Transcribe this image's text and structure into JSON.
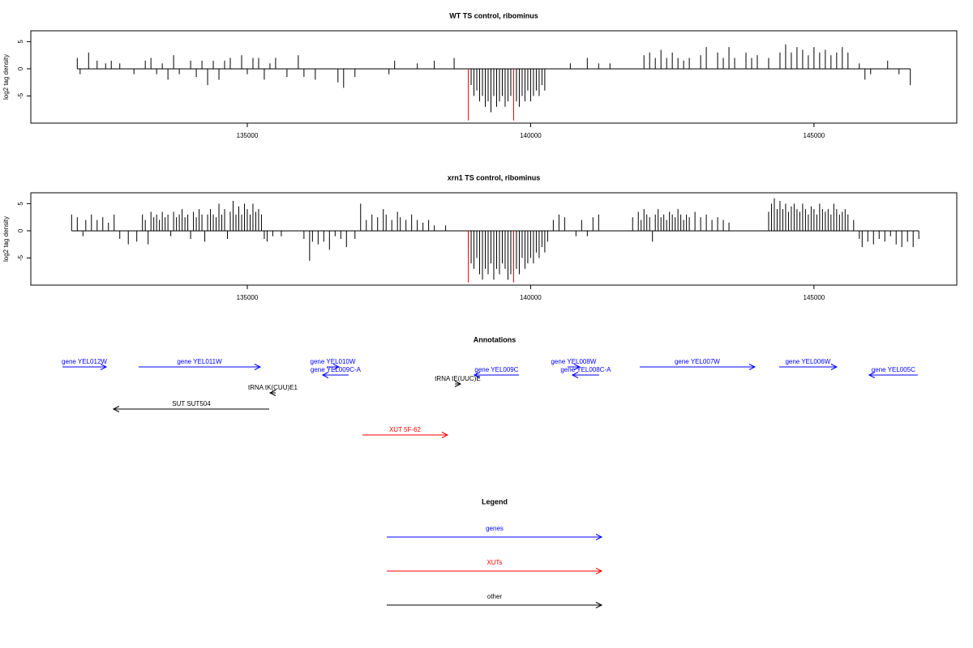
{
  "chart_data": [
    {
      "type": "bar",
      "title": "WT TS control, ribominus",
      "ylabel": "log2 tag density",
      "xlim": [
        131180,
        147520
      ],
      "ylim": [
        -10,
        7
      ],
      "xticks": [
        135000,
        140000,
        145000
      ],
      "yticks": [
        -5,
        0,
        5
      ],
      "series": [
        {
          "color": "#000000",
          "x": [
            132000,
            132050,
            132200,
            132350,
            132500,
            132600,
            132750,
            133000,
            133200,
            133300,
            133400,
            133500,
            133600,
            133700,
            133800,
            134000,
            134100,
            134200,
            134300,
            134400,
            134500,
            134600,
            134700,
            134900,
            135000,
            135100,
            135200,
            135300,
            135400,
            135500,
            135700,
            135900,
            136000,
            136200,
            136600,
            136700,
            136900,
            137500,
            137600,
            138000,
            138300,
            138650,
            138950,
            139000,
            139050,
            139100,
            139150,
            139200,
            139250,
            139300,
            139350,
            139400,
            139450,
            139500,
            139550,
            139600,
            139650,
            139750,
            139800,
            139850,
            139900,
            139950,
            140000,
            140050,
            140100,
            140150,
            140200,
            140250,
            140700,
            141000,
            141200,
            141400,
            142000,
            142100,
            142200,
            142300,
            142400,
            142500,
            142600,
            142700,
            142800,
            143000,
            143100,
            143300,
            143400,
            143500,
            143600,
            143800,
            143900,
            144000,
            144200,
            144400,
            144500,
            144600,
            144700,
            144800,
            144900,
            145000,
            145100,
            145200,
            145300,
            145400,
            145500,
            145600,
            145800,
            145900,
            146000,
            146300,
            146500,
            146700
          ],
          "values": [
            2,
            -1,
            3,
            1.5,
            1,
            1.5,
            1,
            -1,
            1.5,
            2,
            -1,
            1,
            -2,
            2.5,
            -1,
            1.5,
            -1.5,
            1.5,
            -3,
            1.5,
            -2,
            1.5,
            2,
            2.5,
            -1,
            2,
            2,
            -2,
            1,
            2,
            -1.5,
            2.5,
            -1.5,
            -2,
            -2.5,
            -3.5,
            -1.5,
            -1,
            1.5,
            1,
            1.5,
            2,
            -3,
            -5,
            -4,
            -6,
            -5,
            -7,
            -6,
            -8,
            -5,
            -7,
            -6,
            -5,
            -7,
            -6,
            -5,
            -6,
            -7,
            -5,
            -6,
            -4,
            -6,
            -5,
            -4,
            -5,
            -3,
            -4,
            1,
            2,
            1,
            1,
            2.5,
            3,
            2,
            3.5,
            2,
            3,
            2,
            1.5,
            2,
            2.5,
            4,
            3,
            2,
            4,
            2,
            3,
            2,
            2.5,
            2,
            3,
            4.5,
            3,
            4,
            3.5,
            2.5,
            4,
            3,
            3.5,
            2.5,
            3,
            4,
            3,
            1,
            -2,
            -1,
            1.5,
            -1,
            -3
          ]
        },
        {
          "color": "#ff0000",
          "x": [
            138900,
            139700
          ],
          "values": [
            -9.5,
            -9.5
          ]
        }
      ]
    },
    {
      "type": "bar",
      "title": "xrn1 TS control, ribominus",
      "ylabel": "log2 tag density",
      "xlim": [
        131180,
        147520
      ],
      "ylim": [
        -10,
        7
      ],
      "xticks": [
        135000,
        140000,
        145000
      ],
      "yticks": [
        -5,
        0,
        5
      ],
      "series": [
        {
          "color": "#000000",
          "x": [
            131900,
            132000,
            132100,
            132150,
            132250,
            132350,
            132450,
            132550,
            132650,
            132750,
            132900,
            133050,
            133150,
            133200,
            133250,
            133300,
            133350,
            133400,
            133450,
            133500,
            133550,
            133600,
            133650,
            133700,
            133750,
            133800,
            133850,
            133900,
            133950,
            134000,
            134050,
            134100,
            134150,
            134200,
            134250,
            134300,
            134350,
            134400,
            134450,
            134500,
            134550,
            134600,
            134650,
            134700,
            134750,
            134800,
            134850,
            134900,
            134950,
            135000,
            135050,
            135100,
            135150,
            135200,
            135250,
            135300,
            135350,
            135450,
            135600,
            136000,
            136100,
            136150,
            136250,
            136350,
            136450,
            136550,
            136650,
            136750,
            136900,
            137000,
            137100,
            137200,
            137300,
            137400,
            137450,
            137550,
            137650,
            137700,
            137800,
            137900,
            138000,
            138100,
            138200,
            138300,
            138500,
            138900,
            138950,
            139000,
            139050,
            139100,
            139150,
            139200,
            139250,
            139300,
            139350,
            139400,
            139450,
            139500,
            139550,
            139600,
            139650,
            139700,
            139750,
            139800,
            139850,
            139900,
            139950,
            140000,
            140050,
            140100,
            140150,
            140200,
            140250,
            140300,
            140400,
            140500,
            140600,
            140800,
            140900,
            141000,
            141100,
            141200,
            141800,
            141900,
            141950,
            142000,
            142050,
            142100,
            142150,
            142200,
            142250,
            142300,
            142350,
            142400,
            142450,
            142500,
            142550,
            142600,
            142650,
            142700,
            142750,
            142800,
            142900,
            143000,
            143100,
            143200,
            143300,
            143400,
            143500,
            144200,
            144250,
            144300,
            144350,
            144400,
            144450,
            144500,
            144550,
            144600,
            144650,
            144700,
            144750,
            144800,
            144850,
            144900,
            144950,
            145000,
            145050,
            145100,
            145150,
            145200,
            145250,
            145300,
            145350,
            145400,
            145450,
            145500,
            145550,
            145600,
            145700,
            145800,
            145850,
            145950,
            146050,
            146150,
            146250,
            146350,
            146450,
            146550,
            146650,
            146750,
            146850
          ],
          "values": [
            3,
            2.5,
            -1,
            2,
            3,
            2,
            2.5,
            1.5,
            3,
            -1.5,
            -2.5,
            -2,
            3,
            2,
            -2.5,
            3.5,
            2.5,
            3,
            2,
            3.5,
            2.5,
            3,
            -1,
            3.5,
            2.5,
            3,
            4,
            2.5,
            3,
            -1.5,
            3.5,
            2.5,
            4,
            3,
            -2,
            3,
            4,
            3,
            2.5,
            5,
            3,
            4,
            -1.5,
            3.5,
            5.5,
            3,
            4.5,
            3,
            5,
            4,
            3,
            5,
            3.5,
            4,
            3,
            -1.5,
            -2,
            -1,
            -1,
            -1.5,
            -5.5,
            -2,
            -2.5,
            -2,
            -3.5,
            -1,
            -1.5,
            -3,
            -1.5,
            5,
            2,
            3,
            2.5,
            4,
            3,
            2,
            3.5,
            2.5,
            2,
            3,
            2,
            1.5,
            2,
            1,
            1,
            -3,
            -6,
            -7,
            -5,
            -8,
            -9,
            -7,
            -8,
            -6,
            -9,
            -7,
            -8,
            -6,
            -7,
            -9,
            -8,
            -6,
            -7,
            -8,
            -5,
            -7,
            -6,
            -5,
            -6,
            -4,
            -5,
            -3,
            -4,
            -2,
            2,
            3,
            2.5,
            -1,
            2,
            -1,
            2.5,
            3,
            2.5,
            3.5,
            2,
            4,
            3,
            2.5,
            -2,
            3,
            4,
            2.5,
            3,
            2,
            3.5,
            3,
            2.5,
            4,
            3,
            2,
            3,
            2.5,
            3.5,
            2.5,
            3,
            2,
            2.5,
            2,
            1.5,
            3.5,
            5,
            6,
            4,
            5.5,
            4,
            5,
            3.5,
            4.5,
            5,
            4,
            3.5,
            5,
            4,
            3,
            4.5,
            4,
            3,
            5,
            4,
            3.5,
            4,
            3,
            5,
            4,
            3,
            3.5,
            4,
            3,
            2,
            -1.5,
            -3,
            -2,
            -2.5,
            -1.5,
            -2,
            -1,
            -2.5,
            -3,
            -2,
            -3,
            -1.5
          ]
        },
        {
          "color": "#ff0000",
          "x": [
            138900,
            139700
          ],
          "values": [
            -9.5,
            -9.5
          ]
        }
      ]
    }
  ],
  "annotations": {
    "title": "Annotations",
    "features": [
      {
        "label": "gene YEL012W",
        "start": 131738,
        "end": 132511,
        "strand": "+",
        "color": "#0000ff"
      },
      {
        "label": "gene YEL011W",
        "start": 133083,
        "end": 135229,
        "strand": "+",
        "color": "#0000ff"
      },
      {
        "label": "gene YEL010W",
        "start": 136402,
        "end": 136617,
        "strand": "+",
        "color": "#0000ff"
      },
      {
        "label": "gene YEL009C-A",
        "start": 136330,
        "end": 136788,
        "strand": "-",
        "color": "#0000ff"
      },
      {
        "label": "tRNA tK(CUU)E1",
        "start": 135401,
        "end": 135501,
        "strand": "-",
        "color": "#000000"
      },
      {
        "label": "SUT SUT504",
        "start": 132639,
        "end": 135386,
        "strand": "-",
        "color": "#000000"
      },
      {
        "label": "tRNA tE(UUC)E",
        "start": 138662,
        "end": 138763,
        "strand": "+",
        "color": "#000000"
      },
      {
        "label": "gene YEL009C",
        "start": 139006,
        "end": 139793,
        "strand": "-",
        "color": "#0000ff"
      },
      {
        "label": "gene YEL008W",
        "start": 140651,
        "end": 140866,
        "strand": "+",
        "color": "#0000ff"
      },
      {
        "label": "gene YEL008C-A",
        "start": 140737,
        "end": 141209,
        "strand": "-",
        "color": "#0000ff"
      },
      {
        "label": "gene YEL007W",
        "start": 141924,
        "end": 143956,
        "strand": "+",
        "color": "#0000ff"
      },
      {
        "label": "gene YEL006W",
        "start": 144385,
        "end": 145401,
        "strand": "+",
        "color": "#0000ff"
      },
      {
        "label": "gene YEL005C",
        "start": 145973,
        "end": 146831,
        "strand": "-",
        "color": "#0000ff"
      },
      {
        "label": "XUT 5F-62",
        "start": 137031,
        "end": 138534,
        "strand": "+",
        "color": "#ff0000"
      }
    ]
  },
  "legend": {
    "title": "Legend",
    "items": [
      {
        "label": "genes",
        "color": "#0000ff"
      },
      {
        "label": "XUTs",
        "color": "#ff0000"
      },
      {
        "label": "other",
        "color": "#000000"
      }
    ]
  }
}
